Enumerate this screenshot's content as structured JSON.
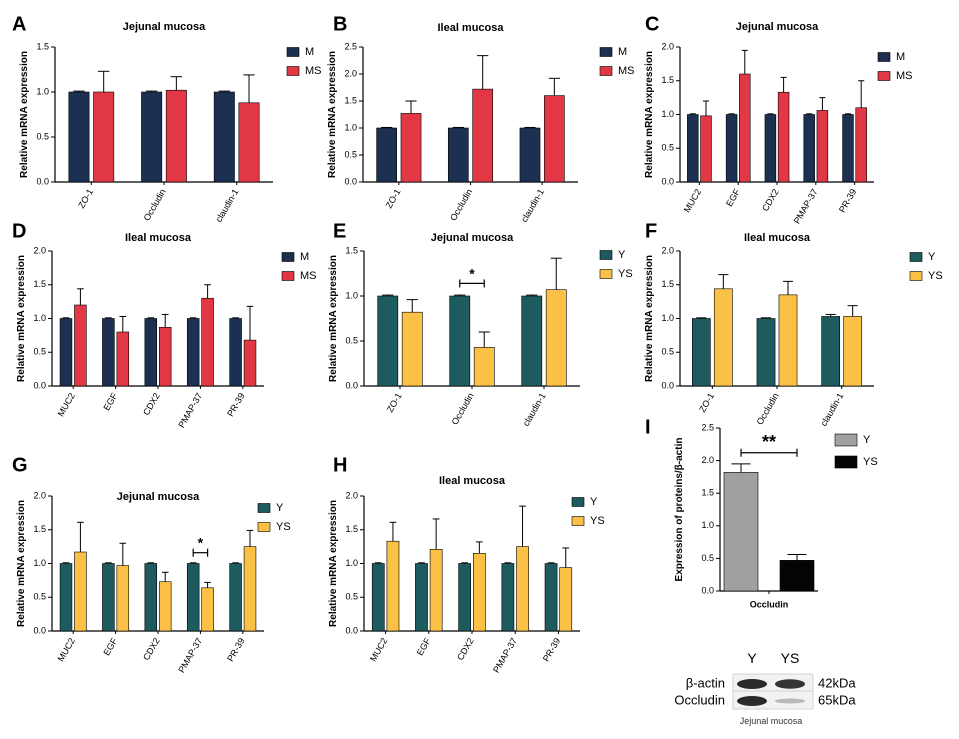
{
  "colors": {
    "M": "#1c3052",
    "MS": "#e23845",
    "Y": "#1e5b5e",
    "YS": "#fbc046",
    "Y_western": "#a0a0a0",
    "YS_western": "#050505"
  },
  "chart_data": [
    {
      "panel": "A",
      "type": "bar",
      "title": "Jejunal mucosa",
      "ylabel": "Relative mRNA expression",
      "ylim": [
        0,
        1.5
      ],
      "yticks": [
        "0.0",
        "0.5",
        "1.0",
        "1.5"
      ],
      "categories": [
        "ZO-1",
        "Occludin",
        "claudin-1"
      ],
      "series": [
        {
          "name": "M",
          "values": [
            1.0,
            1.0,
            1.0
          ],
          "errors": [
            0.01,
            0.01,
            0.01
          ]
        },
        {
          "name": "MS",
          "values": [
            1.0,
            1.02,
            0.88
          ],
          "errors": [
            0.23,
            0.15,
            0.31
          ]
        }
      ]
    },
    {
      "panel": "B",
      "type": "bar",
      "title": "Ileal mucosa",
      "ylabel": "Relative mRNA expression",
      "ylim": [
        0,
        2.5
      ],
      "yticks": [
        "0.0",
        "0.5",
        "1.0",
        "1.5",
        "2.0",
        "2.5"
      ],
      "categories": [
        "ZO-1",
        "Occludin",
        "claudin-1"
      ],
      "series": [
        {
          "name": "M",
          "values": [
            1.0,
            1.0,
            1.0
          ],
          "errors": [
            0.01,
            0.01,
            0.01
          ]
        },
        {
          "name": "MS",
          "values": [
            1.27,
            1.72,
            1.6
          ],
          "errors": [
            0.23,
            0.62,
            0.32
          ]
        }
      ]
    },
    {
      "panel": "C",
      "type": "bar",
      "title": "Jejunal mucosa",
      "ylabel": "Relative mRNA expression",
      "ylim": [
        0,
        2.0
      ],
      "yticks": [
        "0.0",
        "0.5",
        "1.0",
        "1.5",
        "2.0"
      ],
      "categories": [
        "MUC2",
        "EGF",
        "CDX2",
        "PMAP-37",
        "PR-39"
      ],
      "series": [
        {
          "name": "M",
          "values": [
            1.0,
            1.0,
            1.0,
            1.0,
            1.0
          ],
          "errors": [
            0.01,
            0.01,
            0.01,
            0.01,
            0.01
          ]
        },
        {
          "name": "MS",
          "values": [
            0.98,
            1.6,
            1.33,
            1.06,
            1.1
          ],
          "errors": [
            0.22,
            0.35,
            0.22,
            0.19,
            0.4
          ]
        }
      ]
    },
    {
      "panel": "D",
      "type": "bar",
      "title": "Ileal mucosa",
      "ylabel": "Relative mRNA expression",
      "ylim": [
        0,
        2.0
      ],
      "yticks": [
        "0.0",
        "0.5",
        "1.0",
        "1.5",
        "2.0"
      ],
      "categories": [
        "MUC2",
        "EGF",
        "CDX2",
        "PMAP-37",
        "PR-39"
      ],
      "series": [
        {
          "name": "M",
          "values": [
            1.0,
            1.0,
            1.0,
            1.0,
            1.0
          ],
          "errors": [
            0.01,
            0.01,
            0.01,
            0.01,
            0.01
          ]
        },
        {
          "name": "MS",
          "values": [
            1.2,
            0.8,
            0.87,
            1.3,
            0.68
          ],
          "errors": [
            0.24,
            0.23,
            0.19,
            0.2,
            0.5
          ]
        }
      ]
    },
    {
      "panel": "E",
      "type": "bar",
      "title": "Jejunal mucosa",
      "ylabel": "Relative mRNA expression",
      "ylim": [
        0,
        1.5
      ],
      "yticks": [
        "0.0",
        "0.5",
        "1.0",
        "1.5"
      ],
      "categories": [
        "ZO-1",
        "Occludin",
        "claudin-1"
      ],
      "series": [
        {
          "name": "Y",
          "values": [
            1.0,
            1.0,
            1.0
          ],
          "errors": [
            0.01,
            0.01,
            0.01
          ]
        },
        {
          "name": "YS",
          "values": [
            0.82,
            0.43,
            1.07
          ],
          "errors": [
            0.14,
            0.17,
            0.35
          ]
        }
      ],
      "significance": [
        {
          "category_index": 1,
          "label": "*",
          "level": 1.14
        }
      ]
    },
    {
      "panel": "F",
      "type": "bar",
      "title": "Ileal mucosa",
      "ylabel": "Relative mRNA expression",
      "ylim": [
        0,
        2.0
      ],
      "yticks": [
        "0.0",
        "0.5",
        "1.0",
        "1.5",
        "2.0"
      ],
      "categories": [
        "ZO-1",
        "Occludin",
        "claudin-1"
      ],
      "series": [
        {
          "name": "Y",
          "values": [
            1.0,
            1.0,
            1.03
          ],
          "errors": [
            0.01,
            0.01,
            0.03
          ]
        },
        {
          "name": "YS",
          "values": [
            1.44,
            1.35,
            1.03
          ],
          "errors": [
            0.21,
            0.2,
            0.16
          ]
        }
      ]
    },
    {
      "panel": "G",
      "type": "bar",
      "title": "Jejunal mucosa",
      "ylabel": "Relative mRNA expression",
      "ylim": [
        0,
        2.0
      ],
      "yticks": [
        "0.0",
        "0.5",
        "1.0",
        "1.5",
        "2.0"
      ],
      "categories": [
        "MUC2",
        "EGF",
        "CDX2",
        "PMAP-37",
        "PR-39"
      ],
      "series": [
        {
          "name": "Y",
          "values": [
            1.0,
            1.0,
            1.0,
            1.0,
            1.0
          ],
          "errors": [
            0.01,
            0.01,
            0.01,
            0.01,
            0.01
          ]
        },
        {
          "name": "YS",
          "values": [
            1.17,
            0.97,
            0.73,
            0.64,
            1.25
          ],
          "errors": [
            0.44,
            0.33,
            0.14,
            0.08,
            0.24
          ]
        }
      ],
      "significance": [
        {
          "category_index": 3,
          "label": "*",
          "level": 1.16
        }
      ]
    },
    {
      "panel": "H",
      "type": "bar",
      "title": "Ileal mucosa",
      "ylabel": "Relative mRNA expression",
      "ylim": [
        0,
        2.0
      ],
      "yticks": [
        "0.0",
        "0.5",
        "1.0",
        "1.5",
        "2.0"
      ],
      "categories": [
        "MUC2",
        "EGF",
        "CDX2",
        "PMAP-37",
        "PR-39"
      ],
      "series": [
        {
          "name": "Y",
          "values": [
            1.0,
            1.0,
            1.0,
            1.0,
            1.0
          ],
          "errors": [
            0.01,
            0.01,
            0.01,
            0.01,
            0.01
          ]
        },
        {
          "name": "YS",
          "values": [
            1.33,
            1.21,
            1.15,
            1.25,
            0.94
          ],
          "errors": [
            0.28,
            0.45,
            0.17,
            0.6,
            0.29
          ]
        }
      ]
    },
    {
      "panel": "I",
      "type": "bar",
      "title": "",
      "ylabel": "Expression of proteins/β-actin",
      "ylim": [
        0,
        2.5
      ],
      "yticks": [
        "0.0",
        "0.5",
        "1.0",
        "1.5",
        "2.0",
        "2.5"
      ],
      "categories": [
        "Occludin"
      ],
      "series": [
        {
          "name": "Y",
          "values": [
            1.82
          ],
          "errors": [
            0.13
          ]
        },
        {
          "name": "YS",
          "values": [
            0.47
          ],
          "errors": [
            0.09
          ]
        }
      ],
      "significance": [
        {
          "category_index": 0,
          "label": "**",
          "level": 2.12
        }
      ]
    }
  ],
  "western_blot": {
    "lanes": [
      "Y",
      "YS"
    ],
    "rows": [
      {
        "protein": "β-actin",
        "size": "42kDa",
        "intensity": [
          1.0,
          0.95
        ]
      },
      {
        "protein": "Occludin",
        "size": "65kDa",
        "intensity": [
          1.0,
          0.25
        ]
      }
    ],
    "caption": "Jejunal mucosa"
  }
}
